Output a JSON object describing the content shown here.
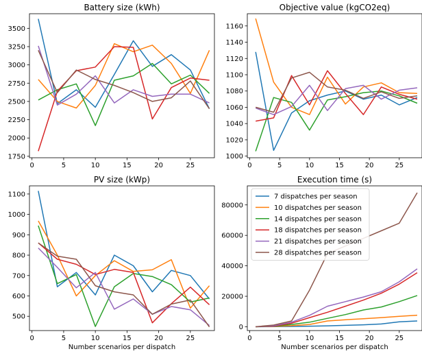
{
  "chart_data": [
    {
      "type": "line",
      "title": "Battery size (kWh)",
      "xlabel": "",
      "ylabel": "",
      "x": [
        1,
        4,
        7,
        10,
        13,
        16,
        19,
        22,
        25,
        28
      ],
      "xticks": [
        0,
        5,
        10,
        15,
        20,
        25
      ],
      "xlim": [
        -0.4,
        28.8
      ],
      "yticks": [
        1750,
        2000,
        2250,
        2500,
        2750,
        3000,
        3250,
        3500
      ],
      "ylim": [
        1730,
        3700
      ],
      "series": [
        {
          "color": "#1f77b4",
          "values": [
            3630,
            2470,
            2660,
            2420,
            2870,
            3330,
            2980,
            3140,
            2930,
            2400
          ]
        },
        {
          "color": "#ff7f0e",
          "values": [
            2800,
            2500,
            2410,
            2720,
            3290,
            3180,
            3270,
            3020,
            2610,
            3200
          ]
        },
        {
          "color": "#2ca02c",
          "values": [
            2520,
            2660,
            2740,
            2170,
            2790,
            2850,
            3020,
            2740,
            2860,
            2610
          ]
        },
        {
          "color": "#d62728",
          "values": [
            1820,
            2640,
            2920,
            2970,
            3250,
            3240,
            2260,
            2690,
            2820,
            2790
          ]
        },
        {
          "color": "#9467bd",
          "values": [
            3260,
            2450,
            2600,
            2850,
            2480,
            2660,
            2570,
            2600,
            2600,
            2480
          ]
        },
        {
          "color": "#8c564b",
          "values": [
            3200,
            2620,
            2930,
            2800,
            2720,
            2620,
            2500,
            2550,
            2780,
            2400
          ]
        }
      ]
    },
    {
      "type": "line",
      "title": "Objective value (kgCO2eq)",
      "xlabel": "",
      "ylabel": "",
      "x": [
        1,
        4,
        7,
        10,
        13,
        16,
        19,
        22,
        25,
        28
      ],
      "xticks": [
        0,
        5,
        10,
        15,
        20,
        25
      ],
      "xlim": [
        -0.4,
        28.8
      ],
      "yticks": [
        1000,
        1020,
        1040,
        1060,
        1080,
        1100,
        1120,
        1140,
        1160
      ],
      "ylim": [
        998,
        1175
      ],
      "series": [
        {
          "color": "#1f77b4",
          "values": [
            1128,
            1007,
            1053,
            1068,
            1075,
            1080,
            1070,
            1075,
            1063,
            1072
          ]
        },
        {
          "color": "#ff7f0e",
          "values": [
            1169,
            1091,
            1060,
            1051,
            1097,
            1064,
            1085,
            1090,
            1078,
            1077
          ]
        },
        {
          "color": "#2ca02c",
          "values": [
            1006,
            1072,
            1066,
            1032,
            1069,
            1073,
            1078,
            1080,
            1074,
            1065
          ]
        },
        {
          "color": "#d62728",
          "values": [
            1043,
            1047,
            1099,
            1063,
            1105,
            1077,
            1051,
            1085,
            1076,
            1070
          ]
        },
        {
          "color": "#9467bd",
          "values": [
            1059,
            1051,
            1061,
            1087,
            1056,
            1083,
            1087,
            1070,
            1081,
            1084
          ]
        },
        {
          "color": "#8c564b",
          "values": [
            1060,
            1054,
            1096,
            1103,
            1085,
            1081,
            1071,
            1079,
            1071,
            1074
          ]
        }
      ]
    },
    {
      "type": "line",
      "title": "PV size (kWp)",
      "xlabel": "Number scenarios per dispatch",
      "ylabel": "",
      "x": [
        1,
        4,
        7,
        10,
        13,
        16,
        19,
        22,
        25,
        28
      ],
      "xticks": [
        0,
        5,
        10,
        15,
        20,
        25
      ],
      "xlim": [
        -0.4,
        28.8
      ],
      "yticks": [
        500,
        600,
        700,
        800,
        900,
        1000,
        1100
      ],
      "ylim": [
        430,
        1140
      ],
      "series": [
        {
          "color": "#1f77b4",
          "values": [
            1115,
            645,
            715,
            605,
            800,
            748,
            620,
            725,
            700,
            585
          ]
        },
        {
          "color": "#ff7f0e",
          "values": [
            968,
            800,
            600,
            700,
            773,
            720,
            728,
            778,
            540,
            650
          ]
        },
        {
          "color": "#2ca02c",
          "values": [
            945,
            660,
            705,
            450,
            645,
            710,
            695,
            655,
            570,
            590
          ]
        },
        {
          "color": "#d62728",
          "values": [
            860,
            780,
            755,
            705,
            730,
            715,
            468,
            562,
            643,
            557
          ]
        },
        {
          "color": "#9467bd",
          "values": [
            835,
            740,
            640,
            715,
            535,
            585,
            510,
            548,
            532,
            455
          ]
        },
        {
          "color": "#8c564b",
          "values": [
            860,
            795,
            780,
            650,
            620,
            605,
            510,
            560,
            580,
            448
          ]
        }
      ]
    },
    {
      "type": "line",
      "title": "Execution time (s)",
      "xlabel": "Number scenarios per dispatch",
      "ylabel": "",
      "x": [
        1,
        4,
        7,
        10,
        13,
        16,
        19,
        22,
        25,
        28
      ],
      "xticks": [
        0,
        5,
        10,
        15,
        20,
        25
      ],
      "xlim": [
        -0.4,
        28.8
      ],
      "yticks": [
        0,
        20000,
        40000,
        60000,
        80000
      ],
      "ylim": [
        -2500,
        92500
      ],
      "legend": {
        "position": "upper-left"
      },
      "series": [
        {
          "name": "7 dispatches per season",
          "color": "#1f77b4",
          "values": [
            0,
            100,
            200,
            400,
            600,
            900,
            1300,
            1800,
            3200,
            3800
          ]
        },
        {
          "name": "10 dispatches per season",
          "color": "#ff7f0e",
          "values": [
            0,
            200,
            700,
            1500,
            3800,
            4600,
            5300,
            6000,
            6800,
            7600
          ]
        },
        {
          "name": "14 dispatches per season",
          "color": "#2ca02c",
          "values": [
            0,
            300,
            1500,
            3000,
            5500,
            8000,
            11000,
            13000,
            16500,
            20500
          ]
        },
        {
          "name": "18 dispatches per season",
          "color": "#d62728",
          "values": [
            0,
            400,
            2300,
            6000,
            9500,
            13500,
            17500,
            22000,
            28000,
            35500
          ]
        },
        {
          "name": "21 dispatches per season",
          "color": "#9467bd",
          "values": [
            0,
            600,
            3000,
            7500,
            13500,
            16500,
            19500,
            23000,
            29500,
            38000
          ]
        },
        {
          "name": "28 dispatches per season",
          "color": "#8c564b",
          "values": [
            0,
            1100,
            3800,
            24000,
            48000,
            53000,
            58000,
            63000,
            68000,
            88000
          ]
        }
      ]
    }
  ]
}
